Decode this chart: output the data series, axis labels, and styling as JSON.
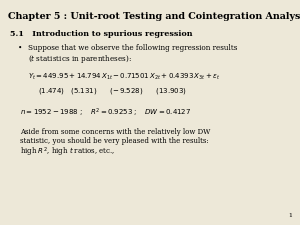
{
  "background_color": "#ede8d8",
  "title": "Chapter 5 : Unit-root Testing and Cointegration Analysis",
  "title_fontsize": 6.8,
  "section": "5.1   Introduction to spurious regression",
  "section_fontsize": 5.8,
  "bullet_fontsize": 5.2,
  "eq_fontsize": 5.0,
  "stats_fontsize": 5.0,
  "aside_fontsize": 5.0,
  "page_fontsize": 4.5,
  "equation_line1": "$Y_t = 449.95 + 14.794\\,X_{1t} - 0.71501\\,X_{2t} + 0.4393\\,X_{3t} + \\varepsilon_t$",
  "equation_line2": "$(1.474)\\quad (5.131) \\qquad (-\\,9.528) \\qquad (13.903)$",
  "stats_line": "$n = 1952 - 1988\\ ;\\quad R^2 = 0.9253\\ ;\\quad DW = 0.4127$",
  "aside_line1": "Aside from some concerns with the relatively low DW",
  "aside_line2": "statistic, you should be very pleased with the results:",
  "aside_line3": "high $R^2$, high $t$ ratios, etc.,",
  "page_number": "1"
}
